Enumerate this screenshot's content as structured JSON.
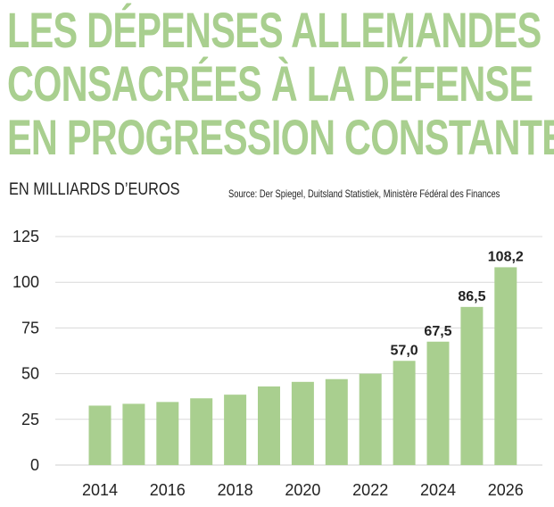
{
  "title_lines": [
    "LES DÉPENSES ALLEMANDES",
    "CONSACRÉES À LA DÉFENSE",
    "EN PROGRESSION CONSTANTE"
  ],
  "unit_label": "EN MILLIARDS D’EUROS",
  "source": "Source: Der Spiegel, Duitsland Statistiek, Ministère Fédéral des Finances",
  "colors": {
    "title": "#a9cf8f",
    "bar": "#a9cf8f",
    "grid": "#d9d9d9",
    "text": "#222222"
  },
  "chart_data": {
    "type": "bar",
    "title": "LES DÉPENSES ALLEMANDES CONSACRÉES À LA DÉFENSE EN PROGRESSION CONSTANTE",
    "ylabel": "EN MILLIARDS D’EUROS",
    "xlabel": "",
    "categories": [
      "2014",
      "2015",
      "2016",
      "2017",
      "2018",
      "2019",
      "2020",
      "2021",
      "2022",
      "2023",
      "2024",
      "2025",
      "2026"
    ],
    "values": [
      32.5,
      33.5,
      34.5,
      36.5,
      38.5,
      43,
      45.5,
      47,
      50,
      57.0,
      67.5,
      86.5,
      108.2
    ],
    "x_tick_labels": [
      "2014",
      "",
      "2016",
      "",
      "2018",
      "",
      "2020",
      "",
      "2022",
      "",
      "2024",
      "",
      "2026"
    ],
    "data_labels": [
      "",
      "",
      "",
      "",
      "",
      "",
      "",
      "",
      "",
      "57,0",
      "67,5",
      "86,5",
      "108,2"
    ],
    "ylim": [
      0,
      125
    ],
    "yticks": [
      0,
      25,
      50,
      75,
      100,
      125
    ],
    "ytick_labels": [
      "0",
      "25",
      "50",
      "75",
      "100",
      "125"
    ],
    "grid": true,
    "legend": "none"
  }
}
